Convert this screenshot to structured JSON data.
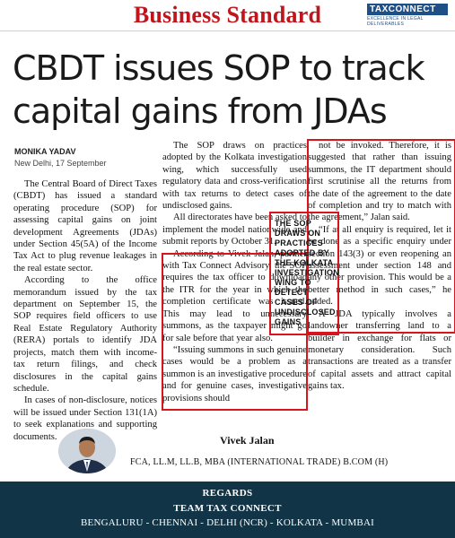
{
  "masthead": {
    "paper_name": "Business Standard",
    "logo_text": "TAXCONNECT",
    "logo_tagline": "EXCELLENCE IN LEGAL DELIVERABLES"
  },
  "article": {
    "headline_line1": "CBDT issues SOP to track",
    "headline_line2": "capital gains from JDAs",
    "byline": "MONIKA YADAV",
    "dateline": "New Delhi, 17 September",
    "col1": [
      "The Central Board of Direct Taxes (CBDT) has issued a standard operating procedure (SOP) for assessing capital gains on joint development Agreements (JDAs) under Section 45(5A) of the Income Tax Act to plug revenue leakages in the real estate sector.",
      "According to the office memorandum issued by the tax department on September 15, the SOP requires field officers to use Real Estate Regulatory Authority (RERA) portals to identify JDA projects, match them with income-tax return filings, and check disclosures in the capital gains schedule.",
      "In cases of non-disclosure, notices will be issued under Section 131(1A) to seek explanations and supporting documents."
    ],
    "col2": [
      "The SOP draws on practices adopted by the Kolkata investigation wing, which successfully used regulatory data and cross-verification with tax returns to detect cases of undisclosed gains.",
      "All directorates have been asked to implement the model nationwide and submit reports by October 31.",
      "According to Vivek Jalan, partner with Tax Connect Advisory, the SOP requires the tax officer to download the ITR for the year in which the completion certificate was issued. This may lead to unnecessary summons, as the taxpayer might go for sale before that year also.",
      "“Issuing summons in such genuine cases would be a problem as a summon is an investigative procedure and for genuine cases, investigative provisions should"
    ],
    "col3": [
      "not be invoked. Therefore, it is suggested that rather than issuing summons, the IT department should first scrutinise all the returns from the date of the agreement to the date of completion and try to match with the agreement,” Jalan said.",
      "“If at all enquiry is required, let it be done as a specific enquiry under section 143(3) or even reopening an assessment under section 148 and any other provision. This would be a better method in such cases,” he added.",
      "A JDA typically involves a landowner transferring land to a builder in exchange for flats or monetary consideration. Such transactions are treated as a transfer of capital assets and attract capital gains tax."
    ],
    "pull_quote": "THE SOP DRAWS ON PRACTICES ADOPTED BY THE KOLKATA INVESTIGATION WING TO DETECT CASES OF UNDISCLOSED GAINS"
  },
  "author": {
    "name": "Vivek Jalan",
    "credentials": "FCA, LL.M, LL.B, MBA (INTERNATIONAL TRADE) B.COM (H)"
  },
  "footer": {
    "line1": "REGARDS",
    "line2": "TEAM TAX CONNECT",
    "line3": "BENGALURU - CHENNAI - DELHI (NCR) - KOLKATA - MUMBAI"
  },
  "colors": {
    "masthead_red": "#c0151b",
    "highlight_red": "#d8151d",
    "footer_navy": "#113447",
    "logo_blue": "#1e4f86"
  }
}
